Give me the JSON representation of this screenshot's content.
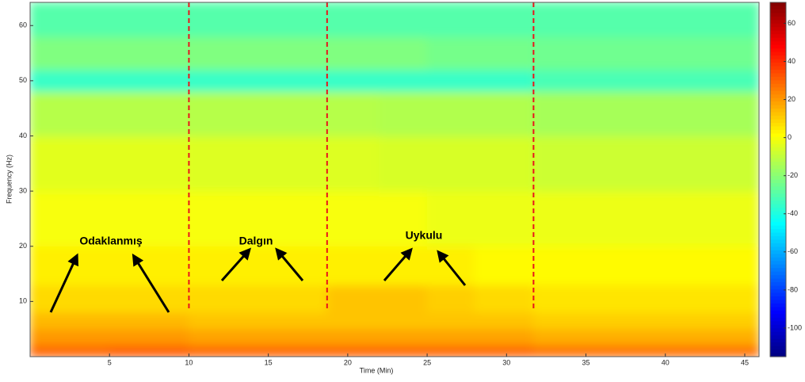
{
  "chart_data": {
    "type": "spectrogram",
    "xlabel": "Time (Min)",
    "ylabel": "Frequency (Hz)",
    "x_edges": [
      0,
      5,
      10,
      14,
      18.7,
      22,
      25,
      28,
      31.7,
      36,
      41,
      45.9
    ],
    "y_edges": [
      0,
      2,
      5,
      8,
      13,
      20,
      30,
      40,
      48,
      52,
      58,
      64.2
    ],
    "z": [
      [
        30,
        32,
        30,
        30,
        30,
        30,
        30,
        30,
        28,
        28,
        28
      ],
      [
        20,
        20,
        18,
        18,
        18,
        18,
        18,
        18,
        16,
        16,
        16
      ],
      [
        14,
        14,
        12,
        12,
        12,
        12,
        12,
        12,
        10,
        10,
        10
      ],
      [
        8,
        8,
        8,
        8,
        12,
        12,
        10,
        8,
        6,
        6,
        6
      ],
      [
        4,
        4,
        4,
        4,
        4,
        4,
        4,
        2,
        2,
        2,
        2
      ],
      [
        0,
        0,
        0,
        0,
        0,
        0,
        -2,
        -2,
        -2,
        -2,
        -2
      ],
      [
        -4,
        -4,
        -5,
        -5,
        -5,
        -6,
        -6,
        -6,
        -8,
        -8,
        -8
      ],
      [
        -12,
        -12,
        -12,
        -12,
        -12,
        -13,
        -13,
        -13,
        -15,
        -15,
        -15
      ],
      [
        -35,
        -35,
        -35,
        -35,
        -35,
        -35,
        -35,
        -35,
        -32,
        -32,
        -32
      ],
      [
        -22,
        -22,
        -22,
        -22,
        -22,
        -22,
        -24,
        -24,
        -25,
        -25,
        -25
      ],
      [
        -30,
        -30,
        -30,
        -30,
        -30,
        -30,
        -30,
        -30,
        -30,
        -30,
        -30
      ]
    ],
    "xlim": [
      0,
      45.9
    ],
    "ylim": [
      0,
      64.2
    ],
    "xticks": [
      5,
      10,
      15,
      20,
      25,
      30,
      35,
      40,
      45
    ],
    "yticks": [
      10,
      20,
      30,
      40,
      50,
      60
    ],
    "clim": [
      -115,
      71
    ],
    "cticks": [
      -100,
      -80,
      -60,
      -40,
      -20,
      0,
      20,
      40,
      60
    ],
    "colormap": "jet",
    "markers": [
      10,
      18.7,
      31.7
    ],
    "marker_color": "#e8141b",
    "annotations": [
      "Odaklanmış",
      "Dalgın",
      "Uykulu"
    ]
  }
}
